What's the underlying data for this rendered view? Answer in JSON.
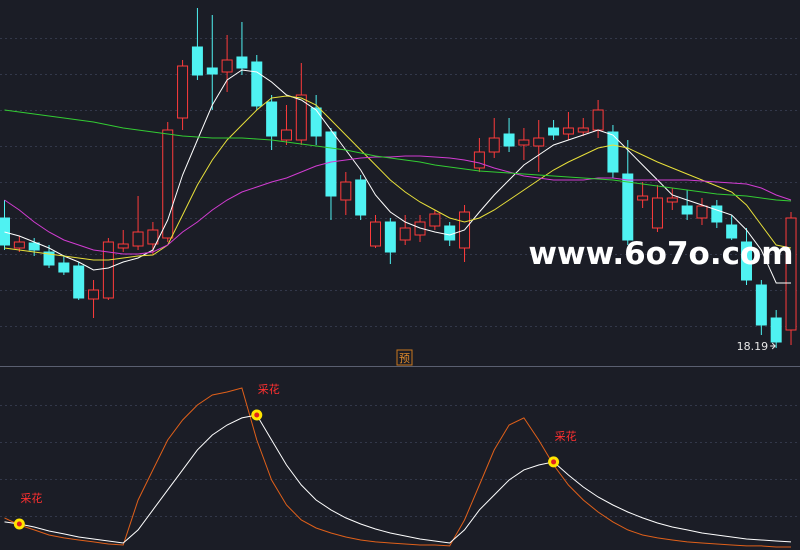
{
  "watermark": "www.6o7o.com",
  "chart_data": [
    {
      "type": "candlestick",
      "categories": [
        null,
        null,
        null,
        null,
        null,
        null,
        null,
        null,
        null,
        null,
        null,
        null,
        null,
        null,
        null,
        null,
        null,
        null,
        null,
        null,
        null,
        null,
        null,
        null,
        null,
        null,
        null,
        null,
        null,
        null,
        null,
        null,
        null,
        null,
        null,
        null,
        null,
        null,
        null,
        null,
        null,
        null,
        null,
        null,
        null,
        null,
        null,
        null,
        null,
        null,
        null,
        null,
        null,
        null
      ],
      "open": [
        24.69,
        23.19,
        23.44,
        22.99,
        22.44,
        22.29,
        20.64,
        20.69,
        23.19,
        23.29,
        23.39,
        23.69,
        29.69,
        33.24,
        32.19,
        31.99,
        32.74,
        32.49,
        30.49,
        28.59,
        28.59,
        30.19,
        28.99,
        25.59,
        26.59,
        23.29,
        24.49,
        23.59,
        23.84,
        24.29,
        24.29,
        23.19,
        27.19,
        27.99,
        28.89,
        28.34,
        28.29,
        29.19,
        28.89,
        28.99,
        29.09,
        28.99,
        26.89,
        25.59,
        24.19,
        25.49,
        25.29,
        24.69,
        25.29,
        24.34,
        23.49,
        21.34,
        19.69,
        19.09
      ],
      "high": [
        25.59,
        23.79,
        23.69,
        23.34,
        22.84,
        22.49,
        21.59,
        23.69,
        24.09,
        25.79,
        24.49,
        29.49,
        32.59,
        35.19,
        34.84,
        33.84,
        34.49,
        32.84,
        30.84,
        30.34,
        32.44,
        30.84,
        29.19,
        26.99,
        26.84,
        24.84,
        24.69,
        24.84,
        24.84,
        25.09,
        24.49,
        25.34,
        28.69,
        29.69,
        29.69,
        29.19,
        29.59,
        29.59,
        29.99,
        29.69,
        30.59,
        29.34,
        28.59,
        26.49,
        26.34,
        26.19,
        26.09,
        25.69,
        25.59,
        24.84,
        24.19,
        21.59,
        20.09,
        24.99
      ],
      "low": [
        23.09,
        22.99,
        22.79,
        22.19,
        21.84,
        20.59,
        19.69,
        20.59,
        22.99,
        23.09,
        22.84,
        23.49,
        29.09,
        31.59,
        30.09,
        30.99,
        31.84,
        30.09,
        28.09,
        28.34,
        28.34,
        28.34,
        24.59,
        24.84,
        24.59,
        23.19,
        22.39,
        23.34,
        23.49,
        24.09,
        23.29,
        22.49,
        26.99,
        27.69,
        27.99,
        27.59,
        26.99,
        28.59,
        28.59,
        28.79,
        28.69,
        26.69,
        23.34,
        25.19,
        23.99,
        25.09,
        24.59,
        24.34,
        24.19,
        23.59,
        21.34,
        18.84,
        18.19,
        18.34
      ],
      "close": [
        23.34,
        23.49,
        23.09,
        22.34,
        21.99,
        20.69,
        21.09,
        23.49,
        23.39,
        23.99,
        24.09,
        29.09,
        32.29,
        31.84,
        31.89,
        32.59,
        32.19,
        30.29,
        28.79,
        29.09,
        30.84,
        28.79,
        25.79,
        26.49,
        24.84,
        24.49,
        22.99,
        24.19,
        24.49,
        24.89,
        23.59,
        24.99,
        27.99,
        28.69,
        28.29,
        28.59,
        28.69,
        28.84,
        29.19,
        29.19,
        30.09,
        26.99,
        23.59,
        25.79,
        25.69,
        25.69,
        24.89,
        25.29,
        24.49,
        23.69,
        21.59,
        19.34,
        18.49,
        24.69
      ],
      "up_color": "#ff3b3b",
      "down_color": "#4ff2f2",
      "series": [
        {
          "color": "#ffffff",
          "values": [
            23.99,
            23.79,
            23.49,
            23.19,
            22.79,
            22.49,
            22.09,
            22.19,
            22.49,
            22.69,
            23.09,
            24.59,
            26.84,
            28.59,
            30.34,
            31.59,
            32.09,
            31.99,
            31.49,
            30.84,
            30.59,
            30.09,
            29.09,
            28.09,
            27.09,
            25.84,
            24.99,
            24.49,
            24.19,
            23.99,
            23.84,
            24.09,
            24.99,
            25.84,
            26.59,
            27.34,
            27.84,
            28.34,
            28.59,
            28.84,
            29.09,
            28.84,
            28.09,
            27.34,
            26.59,
            25.84,
            25.59,
            25.34,
            25.09,
            24.84,
            24.09,
            23.09,
            21.44,
            21.44
          ]
        },
        {
          "color": "#e8e03a",
          "values": [
            23.19,
            23.09,
            22.99,
            22.89,
            22.79,
            22.69,
            22.59,
            22.59,
            22.69,
            22.79,
            22.84,
            23.34,
            24.84,
            26.34,
            27.59,
            28.59,
            29.34,
            30.09,
            30.69,
            30.79,
            30.69,
            30.34,
            29.59,
            28.84,
            28.09,
            27.34,
            26.59,
            25.99,
            25.49,
            25.09,
            24.69,
            24.49,
            24.69,
            25.09,
            25.59,
            26.09,
            26.59,
            27.09,
            27.49,
            27.84,
            28.19,
            28.34,
            28.19,
            27.84,
            27.49,
            27.19,
            26.89,
            26.59,
            26.29,
            25.99,
            25.34,
            24.34,
            23.34,
            23.19
          ]
        },
        {
          "color": "#d23cd2",
          "values": [
            25.59,
            25.09,
            24.49,
            23.99,
            23.59,
            23.34,
            23.09,
            22.99,
            22.89,
            22.89,
            22.99,
            23.34,
            23.99,
            24.49,
            25.09,
            25.59,
            25.99,
            26.24,
            26.49,
            26.69,
            26.99,
            27.29,
            27.49,
            27.59,
            27.69,
            27.74,
            27.74,
            27.79,
            27.79,
            27.74,
            27.69,
            27.59,
            27.44,
            27.19,
            26.99,
            26.79,
            26.69,
            26.59,
            26.59,
            26.59,
            26.69,
            26.69,
            26.59,
            26.59,
            26.59,
            26.59,
            26.59,
            26.54,
            26.49,
            26.44,
            26.39,
            26.19,
            25.84,
            25.59
          ]
        },
        {
          "color": "#33cc33",
          "values": [
            30.09,
            29.99,
            29.89,
            29.79,
            29.69,
            29.59,
            29.49,
            29.34,
            29.19,
            29.09,
            28.99,
            28.89,
            28.79,
            28.74,
            28.69,
            28.69,
            28.69,
            28.64,
            28.59,
            28.49,
            28.39,
            28.29,
            28.19,
            28.09,
            27.94,
            27.79,
            27.69,
            27.59,
            27.49,
            27.34,
            27.24,
            27.14,
            27.04,
            26.99,
            26.94,
            26.89,
            26.84,
            26.79,
            26.74,
            26.69,
            26.64,
            26.59,
            26.49,
            26.39,
            26.29,
            26.19,
            26.09,
            25.99,
            25.89,
            25.84,
            25.79,
            25.69,
            25.59,
            25.54
          ]
        }
      ],
      "ylim": [
        17.34,
        35.59
      ],
      "marker": "预"
    },
    {
      "type": "line",
      "categories": [
        null,
        null,
        null,
        null,
        null,
        null,
        null,
        null,
        null,
        null,
        null,
        null,
        null,
        null,
        null,
        null,
        null,
        null,
        null,
        null,
        null,
        null,
        null,
        null,
        null,
        null,
        null,
        null,
        null,
        null,
        null,
        null,
        null,
        null,
        null,
        null,
        null,
        null,
        null,
        null,
        null,
        null,
        null,
        null,
        null,
        null,
        null,
        null,
        null,
        null,
        null,
        null,
        null,
        null
      ],
      "series": [
        {
          "color": "#e0601a",
          "values": [
            18.8,
            14.4,
            11.3,
            8.1,
            6.3,
            5,
            3.8,
            2.5,
            1.9,
            30,
            48.8,
            67.5,
            80,
            89.4,
            95.6,
            97.5,
            100,
            67.5,
            42.5,
            26.9,
            17.5,
            12.5,
            9.4,
            6.9,
            5,
            3.8,
            3.1,
            2.5,
            1.9,
            1.9,
            1.3,
            17.5,
            39.4,
            61.3,
            76.9,
            81.3,
            67.5,
            51.9,
            39.4,
            30,
            22.5,
            16.3,
            11.3,
            8.1,
            6.3,
            5,
            3.8,
            3.1,
            2.5,
            1.9,
            1.3,
            1.3,
            0.6,
            0.6
          ]
        },
        {
          "color": "#ffffff",
          "values": [
            16.3,
            15,
            13.1,
            10.6,
            8.8,
            6.9,
            5.6,
            4.4,
            3.1,
            11.3,
            23.8,
            36.3,
            48.8,
            61.3,
            70.6,
            76.9,
            81.3,
            83.1,
            67.5,
            51.9,
            39.4,
            30,
            23.8,
            18.8,
            15,
            11.9,
            9.4,
            7.5,
            5.6,
            4.4,
            3.1,
            11.3,
            23.8,
            33.1,
            42.5,
            48.8,
            51.9,
            53.8,
            45.6,
            38.1,
            31.9,
            26.9,
            22.5,
            18.8,
            15.6,
            13.1,
            11.3,
            9.4,
            8.1,
            6.9,
            5.6,
            5,
            4.4,
            3.8
          ]
        }
      ],
      "ylim": [
        0,
        100
      ],
      "signals": [
        {
          "x": 1,
          "label": "采花"
        },
        {
          "x": 17,
          "label": "采花"
        },
        {
          "x": 37,
          "label": "采花"
        }
      ]
    }
  ]
}
